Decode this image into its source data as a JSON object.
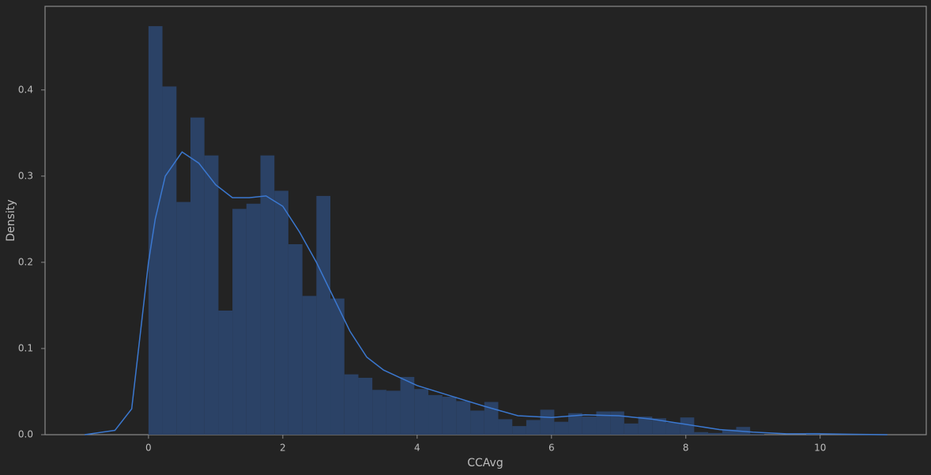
{
  "chart_data": {
    "type": "histogram",
    "xlabel": "CCAvg",
    "ylabel": "Density",
    "bins": [
      0,
      0.208,
      0.417,
      0.625,
      0.833,
      1.042,
      1.25,
      1.458,
      1.667,
      1.875,
      2.083,
      2.292,
      2.5,
      2.708,
      2.917,
      3.125,
      3.333,
      3.542,
      3.75,
      3.958,
      4.167,
      4.375,
      4.583,
      4.792,
      5,
      5.208,
      5.417,
      5.625,
      5.833,
      6.042,
      6.25,
      6.458,
      6.667,
      6.875,
      7.083,
      7.292,
      7.5,
      7.708,
      7.917,
      8.125,
      8.333,
      8.542,
      8.75,
      8.958,
      9.167,
      9.375,
      9.583,
      9.792,
      10
    ],
    "values": [
      0.474,
      0.404,
      0.27,
      0.368,
      0.324,
      0.144,
      0.262,
      0.268,
      0.324,
      0.283,
      0.221,
      0.161,
      0.277,
      0.158,
      0.07,
      0.066,
      0.052,
      0.051,
      0.067,
      0.053,
      0.046,
      0.044,
      0.039,
      0.028,
      0.038,
      0.018,
      0.01,
      0.017,
      0.029,
      0.015,
      0.025,
      0.021,
      0.027,
      0.027,
      0.013,
      0.021,
      0.019,
      0.014,
      0.02,
      0.003,
      0.002,
      0.006,
      0.009,
      0.001,
      0,
      0,
      0,
      0.002
    ],
    "color": "#2b4266",
    "kde": {
      "color": "#3b78d0",
      "x": [
        -0.95,
        -0.5,
        -0.25,
        0,
        0.1,
        0.25,
        0.5,
        0.75,
        1,
        1.25,
        1.5,
        1.75,
        2,
        2.25,
        2.5,
        2.75,
        3,
        3.25,
        3.5,
        4,
        4.5,
        5,
        5.5,
        6,
        6.5,
        7,
        7.5,
        8,
        8.5,
        9,
        9.5,
        10,
        10.5,
        11
      ],
      "values": [
        0,
        0.005,
        0.03,
        0.2,
        0.25,
        0.3,
        0.328,
        0.315,
        0.29,
        0.275,
        0.275,
        0.277,
        0.265,
        0.235,
        0.2,
        0.16,
        0.12,
        0.09,
        0.075,
        0.057,
        0.045,
        0.033,
        0.022,
        0.02,
        0.023,
        0.022,
        0.018,
        0.012,
        0.006,
        0.003,
        0.001,
        0.001,
        0.0005,
        0
      ]
    },
    "xlim": [
      -1.54,
      11.58
    ],
    "ylim": [
      0,
      0.497
    ],
    "xticks": [
      0,
      2,
      4,
      6,
      8,
      10
    ],
    "yticks": [
      {
        "value": 0,
        "label": "0.0"
      },
      0.1,
      0.2,
      0.3,
      0.4
    ]
  }
}
